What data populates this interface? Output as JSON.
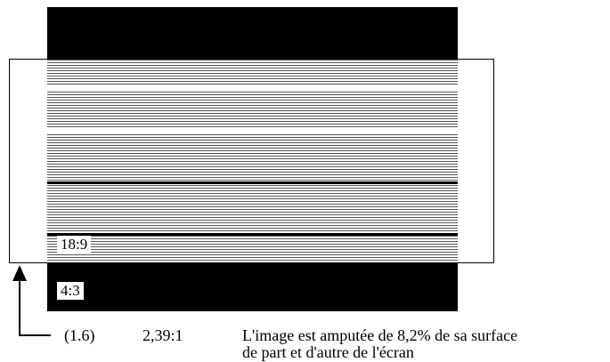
{
  "labels": {
    "aspect_inner": "18:9",
    "aspect_outer": "4:3",
    "code": "(1.6)",
    "ratio": "2,39:1",
    "description_line1": "L'image est amputée de 8,2% de sa surface",
    "description_line2": "de part et d'autre de l'écran"
  },
  "colors": {
    "bars": "#000000",
    "background": "#ffffff",
    "lines": "#555555"
  }
}
